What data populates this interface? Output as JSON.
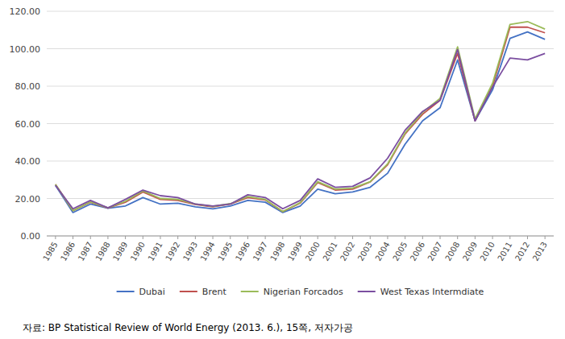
{
  "chart_data": {
    "type": "line",
    "x": [
      1985,
      1986,
      1987,
      1988,
      1989,
      1990,
      1991,
      1992,
      1993,
      1994,
      1995,
      1996,
      1997,
      1998,
      1999,
      2000,
      2001,
      2002,
      2003,
      2004,
      2005,
      2006,
      2007,
      2008,
      2009,
      2010,
      2011,
      2012,
      2013
    ],
    "series": [
      {
        "name": "Dubai",
        "color": "#4472C4",
        "values": [
          27.0,
          12.5,
          17.0,
          14.8,
          16.0,
          20.5,
          17.0,
          17.5,
          15.5,
          14.5,
          16.0,
          19.0,
          18.0,
          12.5,
          16.0,
          25.0,
          22.5,
          23.5,
          26.0,
          33.5,
          49.0,
          61.5,
          68.5,
          94.0,
          61.5,
          78.0,
          105.5,
          109.0,
          105.0
        ]
      },
      {
        "name": "Brent",
        "color": "#C0504D",
        "values": [
          27.5,
          13.5,
          18.0,
          14.9,
          18.0,
          23.5,
          19.5,
          19.0,
          16.8,
          15.5,
          17.0,
          20.5,
          19.2,
          13.0,
          17.5,
          28.5,
          24.5,
          25.0,
          28.8,
          38.0,
          54.5,
          65.0,
          72.5,
          97.5,
          61.5,
          80.0,
          111.5,
          111.5,
          108.5
        ]
      },
      {
        "name": "Nigerian Forcados",
        "color": "#9BBB59",
        "values": [
          27.5,
          13.5,
          18.2,
          15.0,
          18.5,
          24.0,
          20.0,
          19.5,
          17.0,
          15.8,
          17.2,
          21.0,
          19.5,
          13.0,
          17.8,
          29.0,
          25.0,
          25.5,
          29.0,
          38.5,
          55.0,
          66.0,
          73.5,
          101.0,
          62.5,
          81.5,
          113.0,
          114.5,
          110.5
        ]
      },
      {
        "name": "West Texas Intermdiate",
        "color": "#7B4EA0",
        "values": [
          27.0,
          14.5,
          19.0,
          15.0,
          19.5,
          24.5,
          21.5,
          20.5,
          17.0,
          16.0,
          17.0,
          22.0,
          20.5,
          14.5,
          19.0,
          30.5,
          26.0,
          26.5,
          31.0,
          41.5,
          56.5,
          66.5,
          72.5,
          99.5,
          61.5,
          79.5,
          95.0,
          94.0,
          97.5
        ]
      }
    ],
    "xlim": [
      1984.5,
      2013.5
    ],
    "xticks": [
      1985,
      1986,
      1987,
      1988,
      1989,
      1990,
      1991,
      1992,
      1993,
      1994,
      1995,
      1996,
      1997,
      1998,
      1999,
      2000,
      2001,
      2002,
      2003,
      2004,
      2005,
      2006,
      2007,
      2008,
      2009,
      2010,
      2011,
      2012,
      2013
    ],
    "ylim": [
      0,
      120
    ],
    "yticks": [
      {
        "value": 0,
        "label": "0.00"
      },
      {
        "value": 20,
        "label": "20.00"
      },
      {
        "value": 40,
        "label": "40.00"
      },
      {
        "value": 60,
        "label": "60.00"
      },
      {
        "value": 80,
        "label": "80.00"
      },
      {
        "value": 100,
        "label": "100.00"
      },
      {
        "value": 120,
        "label": "120.00"
      }
    ],
    "grid": true,
    "legend": "bottom",
    "annotations": [
      "자료:  BP Statistical Review of World Energy (2013. 6.), 15쪽, 저자가공"
    ]
  }
}
